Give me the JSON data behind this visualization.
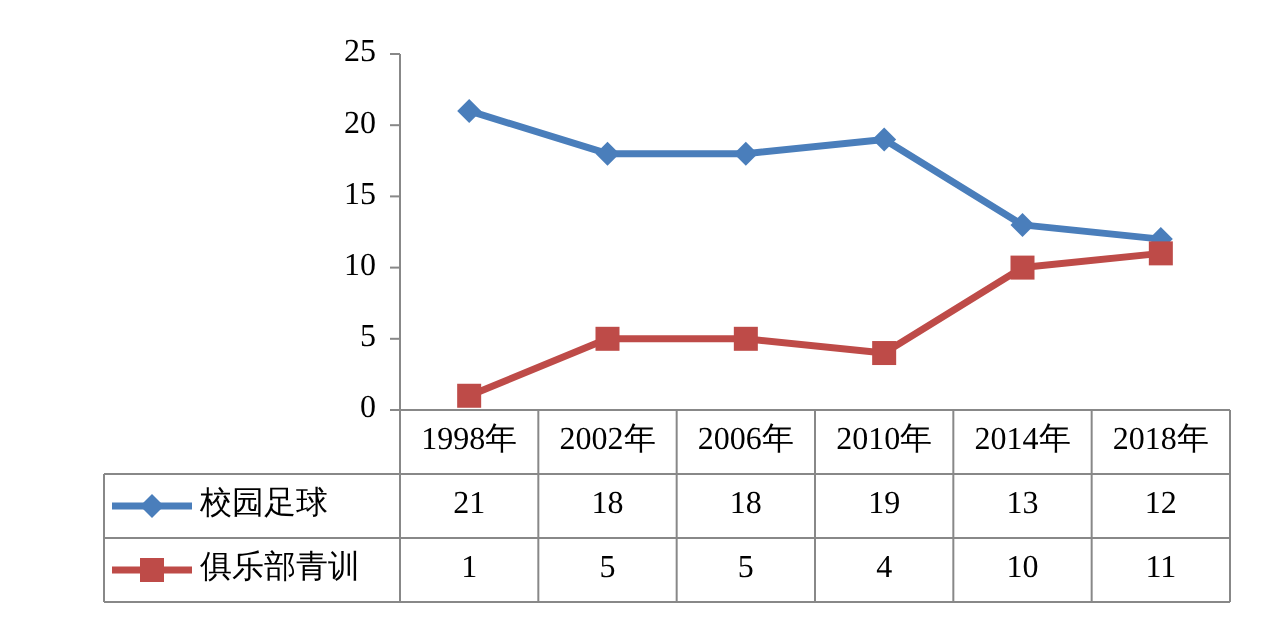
{
  "chart_data": {
    "type": "line",
    "categories": [
      "1998年",
      "2002年",
      "2006年",
      "2010年",
      "2014年",
      "2018年"
    ],
    "series": [
      {
        "name": "校园足球",
        "color": "#4a7ebb",
        "marker": "diamond",
        "values": [
          21,
          18,
          18,
          19,
          13,
          12
        ]
      },
      {
        "name": "俱乐部青训",
        "color": "#be4b48",
        "marker": "square",
        "values": [
          1,
          5,
          5,
          4,
          10,
          11
        ]
      }
    ],
    "ylim": [
      0,
      25
    ],
    "yticks": [
      0,
      5,
      10,
      15,
      20,
      25
    ],
    "grid": false,
    "legend": "bottom left",
    "data_labels": true,
    "line_style": "solid"
  }
}
